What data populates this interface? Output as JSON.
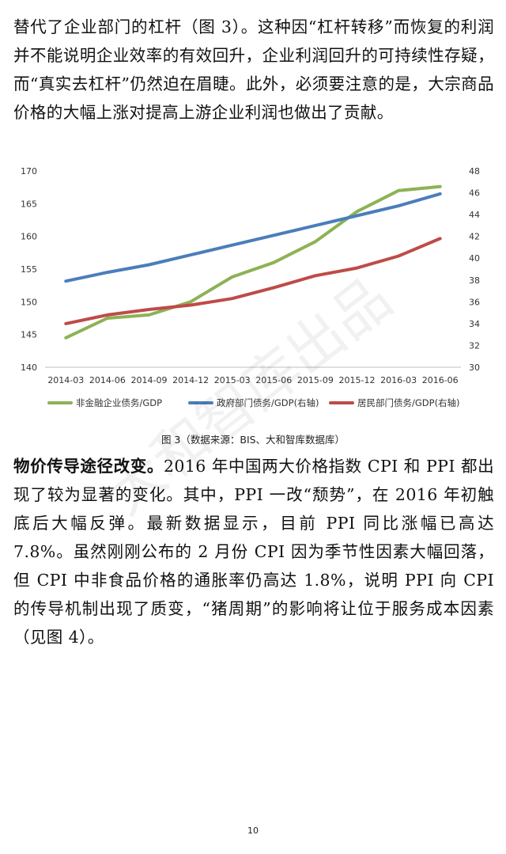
{
  "paragraphs": {
    "p1": "替代了企业部门的杠杆（图 3）。这种因“杠杆转移”而恢复的利润并不能说明企业效率的有效回升，企业利润回升的可持续性存疑，而“真实去杠杆”仍然迫在眉睫。此外，必须要注意的是，大宗商品价格的大幅上涨对提高上游企业利润也做出了贡献。",
    "p2_heading": "物价传导途径改变。",
    "p2_body": "2016 年中国两大价格指数 CPI 和 PPI 都出现了较为显著的变化。其中，PPI 一改“颓势”，在 2016 年初触底后大幅反弹。最新数据显示，目前 PPI 同比涨幅已高达 7.8%。虽然刚刚公布的 2 月份 CPI 因为季节性因素大幅回落，但 CPI 中非食品价格的通胀率仍高达 1.8%，说明 PPI 向 CPI 的传导机制出现了质变，“猪周期”的影响将让位于服务成本因素（见图 4）。"
  },
  "figure_caption": "图 3（数据来源：BIS、大和智库数据库）",
  "page_number": "10",
  "watermark_text": "大和智库出品",
  "chart_data": {
    "type": "line",
    "categories": [
      "2014-03",
      "2014-06",
      "2014-09",
      "2014-12",
      "2015-03",
      "2015-06",
      "2015-09",
      "2015-12",
      "2016-03",
      "2016-06"
    ],
    "y_left": {
      "min": 140,
      "max": 170,
      "ticks": [
        "140",
        "145",
        "150",
        "155",
        "160",
        "165",
        "170"
      ]
    },
    "y_right": {
      "min": 30,
      "max": 48,
      "ticks": [
        "30",
        "32",
        "34",
        "36",
        "38",
        "40",
        "42",
        "44",
        "46",
        "48"
      ]
    },
    "series": [
      {
        "name": "非金融企业债务/GDP",
        "axis": "left",
        "color": "#8DB255",
        "values": [
          144.5,
          147.5,
          148.0,
          150.0,
          153.8,
          156.0,
          159.2,
          163.8,
          167.0,
          167.6
        ]
      },
      {
        "name": "政府部门债务/GDP(右轴)",
        "axis": "right",
        "color": "#4A7EBB",
        "values": [
          37.9,
          38.7,
          39.4,
          40.3,
          41.2,
          42.1,
          43.0,
          43.9,
          44.8,
          45.9
        ]
      },
      {
        "name": "居民部门债务/GDP(右轴)",
        "axis": "right",
        "color": "#BE4B48",
        "values": [
          34.0,
          34.8,
          35.3,
          35.7,
          36.3,
          37.3,
          38.4,
          39.1,
          40.2,
          41.8
        ]
      }
    ],
    "grid": false,
    "legend_position": "bottom"
  }
}
